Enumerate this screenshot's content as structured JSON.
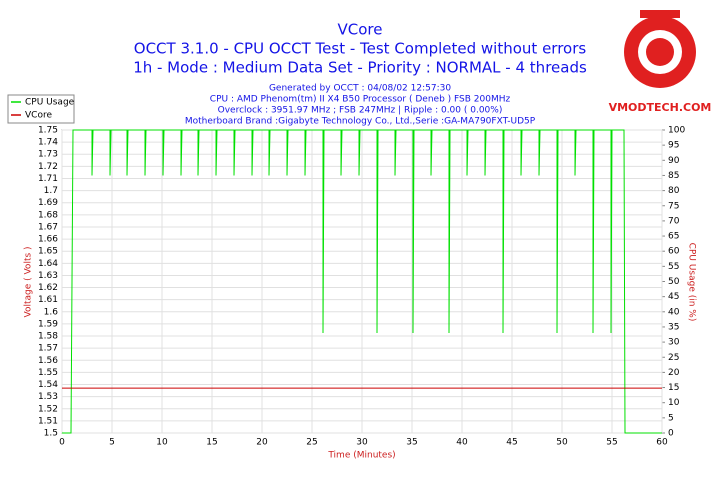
{
  "chart_data": {
    "type": "line",
    "title": "VCore",
    "subtitle": [
      "OCCT 3.1.0 - CPU OCCT Test - Test Completed without errors",
      "1h - Mode : Medium Data Set - Priority : NORMAL - 4 threads"
    ],
    "notes": [
      "Generated by OCCT : 04/08/02 12:57:30",
      "CPU : AMD Phenom(tm) II X4 B50 Processor ( Deneb ) FSB 200MHz",
      "Overclock : 3951.97 MHz ; FSB 247MHz | Ripple : 0.00 ( 0.00%)",
      "Motherboard Brand :Gigabyte Technology Co., Ltd.,Serie :GA-MA790FXT-UD5P"
    ],
    "watermark": "VMODTECH.COM",
    "xlabel": "Time (Minutes)",
    "ylabel": "Voltage ( Volts )",
    "y2label": "CPU Usage (in %)",
    "xlim": [
      0,
      60
    ],
    "xticks": [
      0,
      5,
      10,
      15,
      20,
      25,
      30,
      35,
      40,
      45,
      50,
      55,
      60
    ],
    "ylim": [
      1.5,
      1.75
    ],
    "yticks": [
      1.5,
      1.51,
      1.52,
      1.53,
      1.54,
      1.55,
      1.56,
      1.57,
      1.58,
      1.59,
      1.6,
      1.61,
      1.62,
      1.63,
      1.64,
      1.65,
      1.66,
      1.67,
      1.68,
      1.69,
      1.7,
      1.71,
      1.72,
      1.73,
      1.74,
      1.75
    ],
    "y2lim": [
      0,
      100
    ],
    "y2ticks": [
      0,
      5,
      10,
      15,
      20,
      25,
      30,
      35,
      40,
      45,
      50,
      55,
      60,
      65,
      70,
      75,
      80,
      85,
      90,
      95,
      100
    ],
    "grid": true,
    "legend_position": "top-left",
    "series": [
      {
        "name": "CPU Usage",
        "color": "#00e000",
        "axis": "y2",
        "x": [
          0,
          0.9,
          1.1,
          3,
          3,
          3.1,
          4.8,
          4.8,
          4.9,
          6.5,
          6.5,
          6.6,
          8.3,
          8.3,
          8.4,
          10.1,
          10.1,
          10.2,
          11.9,
          11.9,
          12,
          13.6,
          13.6,
          13.7,
          15.4,
          15.4,
          15.5,
          17.2,
          17.2,
          17.3,
          19,
          19,
          19.1,
          20.7,
          20.7,
          20.8,
          22.5,
          22.5,
          22.6,
          24.3,
          24.3,
          24.4,
          26.1,
          26.1,
          26.2,
          27.9,
          27.9,
          28,
          29.7,
          29.7,
          29.8,
          31.5,
          31.5,
          31.6,
          33.3,
          33.3,
          33.4,
          35.1,
          35.1,
          35.2,
          36.9,
          36.9,
          37,
          38.7,
          38.7,
          38.8,
          40.5,
          40.5,
          40.6,
          42.3,
          42.3,
          42.4,
          44.1,
          44.1,
          44.2,
          45.9,
          45.9,
          46,
          47.7,
          47.7,
          47.8,
          49.5,
          49.5,
          49.6,
          51.3,
          51.3,
          51.4,
          53.1,
          53.1,
          53.2,
          54.9,
          54.9,
          55,
          56.2,
          56.3,
          60
        ],
        "values": [
          0,
          0,
          100,
          100,
          85,
          100,
          100,
          85,
          100,
          100,
          85,
          100,
          100,
          85,
          100,
          100,
          85,
          100,
          100,
          85,
          100,
          100,
          85,
          100,
          100,
          85,
          100,
          100,
          85,
          100,
          100,
          85,
          100,
          100,
          85,
          100,
          100,
          85,
          100,
          100,
          85,
          100,
          100,
          33,
          100,
          100,
          85,
          100,
          100,
          85,
          100,
          100,
          33,
          100,
          100,
          85,
          100,
          100,
          33,
          100,
          100,
          85,
          100,
          100,
          33,
          100,
          100,
          85,
          100,
          100,
          85,
          100,
          100,
          33,
          100,
          100,
          85,
          100,
          100,
          85,
          100,
          100,
          33,
          100,
          100,
          85,
          100,
          100,
          33,
          100,
          100,
          33,
          100,
          100,
          0,
          0
        ]
      },
      {
        "name": "VCore",
        "color": "#cc0000",
        "axis": "y",
        "x": [
          0,
          60
        ],
        "values": [
          1.537,
          1.537
        ]
      }
    ]
  }
}
